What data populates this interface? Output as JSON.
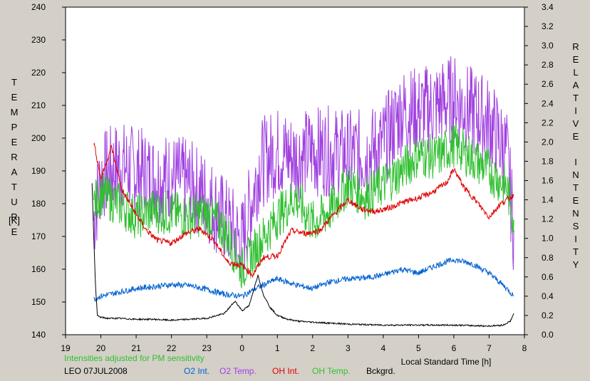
{
  "chart_data": {
    "type": "line",
    "title": "",
    "left_axis_label": "TEMPERATURE",
    "left_axis_unit": "[K]",
    "right_axis_label": "RELATIVE INTENSITY",
    "xlabel": "Local Standard Time [h]",
    "x_range": [
      19,
      8
    ],
    "x_ticks": [
      "19",
      "20",
      "21",
      "22",
      "23",
      "0",
      "1",
      "2",
      "3",
      "4",
      "5",
      "6",
      "7",
      "8"
    ],
    "left_ylim": [
      140,
      240
    ],
    "left_ticks": [
      "140",
      "150",
      "160",
      "170",
      "180",
      "190",
      "200",
      "210",
      "220",
      "230",
      "240"
    ],
    "right_ylim": [
      0.0,
      3.4
    ],
    "right_ticks": [
      "0.0",
      "0.2",
      "0.4",
      "0.6",
      "0.8",
      "1.0",
      "1.2",
      "1.4",
      "1.6",
      "1.8",
      "2.0",
      "2.2",
      "2.4",
      "2.6",
      "2.8",
      "3.0",
      "3.2",
      "3.4"
    ],
    "note": "Intensities adjusted for PM sensitivity",
    "station": "LEO 07JUL2008",
    "grid": false,
    "series": [
      {
        "name": "O2 Int.",
        "color": "#0060d0",
        "axis": "right",
        "x": [
          19.8,
          20.0,
          20.5,
          21.0,
          21.5,
          22.0,
          22.5,
          23.0,
          23.5,
          0.0,
          0.5,
          1.0,
          1.5,
          2.0,
          2.5,
          3.0,
          3.5,
          4.0,
          4.5,
          5.0,
          5.5,
          6.0,
          6.5,
          7.0,
          7.5,
          7.7
        ],
        "y": [
          0.37,
          0.4,
          0.44,
          0.48,
          0.5,
          0.52,
          0.51,
          0.47,
          0.42,
          0.4,
          0.5,
          0.58,
          0.52,
          0.48,
          0.55,
          0.58,
          0.59,
          0.62,
          0.68,
          0.64,
          0.72,
          0.78,
          0.74,
          0.64,
          0.48,
          0.4
        ]
      },
      {
        "name": "O2 Temp.",
        "color": "#a040e0",
        "axis": "left",
        "x": [
          19.8,
          20.0,
          20.5,
          21.0,
          21.5,
          22.0,
          22.5,
          23.0,
          23.5,
          0.0,
          0.5,
          1.0,
          1.5,
          2.0,
          2.5,
          3.0,
          3.5,
          4.0,
          4.5,
          5.0,
          5.5,
          6.0,
          6.5,
          7.0,
          7.5,
          7.7
        ],
        "y": [
          175,
          188,
          192,
          190,
          188,
          188,
          186,
          182,
          175,
          168,
          192,
          196,
          194,
          196,
          196,
          195,
          195,
          198,
          208,
          208,
          210,
          212,
          208,
          205,
          195,
          172
        ]
      },
      {
        "name": "OH Int.",
        "color": "#e00000",
        "axis": "right",
        "x": [
          19.8,
          20.0,
          20.3,
          20.6,
          21.0,
          21.3,
          21.6,
          22.0,
          22.4,
          22.8,
          23.2,
          23.6,
          0.0,
          0.3,
          0.6,
          1.0,
          1.4,
          1.8,
          2.2,
          2.6,
          3.0,
          3.4,
          3.8,
          4.2,
          4.6,
          5.0,
          5.4,
          5.8,
          6.0,
          6.3,
          6.6,
          7.0,
          7.3,
          7.7
        ],
        "y": [
          2.0,
          1.62,
          1.95,
          1.5,
          1.25,
          1.08,
          0.98,
          0.95,
          1.05,
          1.1,
          0.98,
          0.75,
          0.72,
          0.62,
          0.8,
          0.82,
          1.08,
          1.05,
          1.08,
          1.25,
          1.4,
          1.3,
          1.28,
          1.32,
          1.38,
          1.42,
          1.48,
          1.58,
          1.72,
          1.52,
          1.4,
          1.22,
          1.35,
          1.45
        ]
      },
      {
        "name": "OH Temp.",
        "color": "#30c030",
        "axis": "left",
        "x": [
          19.8,
          20.0,
          20.5,
          21.0,
          21.5,
          22.0,
          22.5,
          23.0,
          23.5,
          0.0,
          0.5,
          1.0,
          1.5,
          2.0,
          2.5,
          3.0,
          3.5,
          4.0,
          4.5,
          5.0,
          5.5,
          6.0,
          6.5,
          7.0,
          7.5,
          7.7
        ],
        "y": [
          180,
          183,
          180,
          176,
          178,
          177,
          176,
          177,
          172,
          160,
          168,
          176,
          182,
          174,
          178,
          186,
          182,
          186,
          190,
          195,
          194,
          198,
          194,
          190,
          185,
          175
        ]
      },
      {
        "name": "Bckgrd.",
        "color": "#000000",
        "axis": "right",
        "x": [
          19.75,
          19.8,
          19.85,
          19.9,
          20.0,
          20.2,
          20.5,
          21.0,
          21.5,
          22.0,
          22.5,
          23.0,
          23.5,
          23.8,
          0.0,
          0.2,
          0.45,
          0.6,
          0.8,
          1.0,
          1.3,
          1.6,
          2.0,
          2.5,
          3.0,
          4.0,
          5.0,
          6.0,
          7.0,
          7.4,
          7.6,
          7.7
        ],
        "y": [
          1.58,
          1.0,
          0.5,
          0.2,
          0.18,
          0.17,
          0.17,
          0.16,
          0.16,
          0.15,
          0.16,
          0.17,
          0.22,
          0.35,
          0.25,
          0.3,
          0.62,
          0.42,
          0.28,
          0.2,
          0.16,
          0.14,
          0.13,
          0.12,
          0.11,
          0.1,
          0.1,
          0.1,
          0.09,
          0.1,
          0.14,
          0.22
        ]
      }
    ]
  }
}
